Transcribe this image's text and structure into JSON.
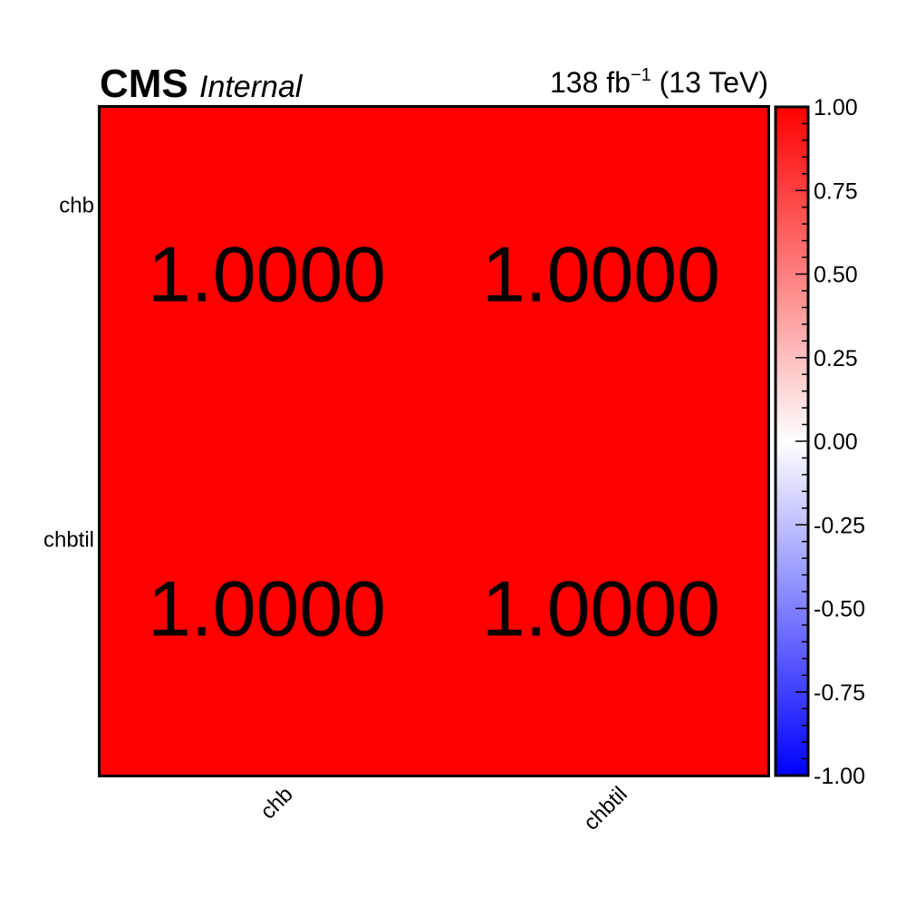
{
  "header": {
    "experiment": "CMS",
    "status": "Internal",
    "lumi_prefix": "138 fb",
    "lumi_sup": "−1",
    "lumi_suffix": " (13 TeV)"
  },
  "chart_data": {
    "type": "heatmap",
    "x_categories": [
      "chb",
      "chbtil"
    ],
    "y_categories": [
      "chb",
      "chbtil"
    ],
    "values": [
      [
        1.0,
        1.0
      ],
      [
        1.0,
        1.0
      ]
    ],
    "value_labels": [
      [
        "1.0000",
        "1.0000"
      ],
      [
        "1.0000",
        "1.0000"
      ]
    ],
    "zlim": [
      -1.0,
      1.0
    ],
    "colorbar_ticks": [
      "1.00",
      "0.75",
      "0.50",
      "0.25",
      "0.00",
      "-0.25",
      "-0.50",
      "-0.75",
      "-1.00"
    ],
    "colorbar_tick_values": [
      1.0,
      0.75,
      0.5,
      0.25,
      0.0,
      -0.25,
      -0.5,
      -0.75,
      -1.0
    ],
    "colors": {
      "low": "#0000ff",
      "mid": "#ffffff",
      "high": "#ff0000",
      "frame": "#000000"
    }
  }
}
